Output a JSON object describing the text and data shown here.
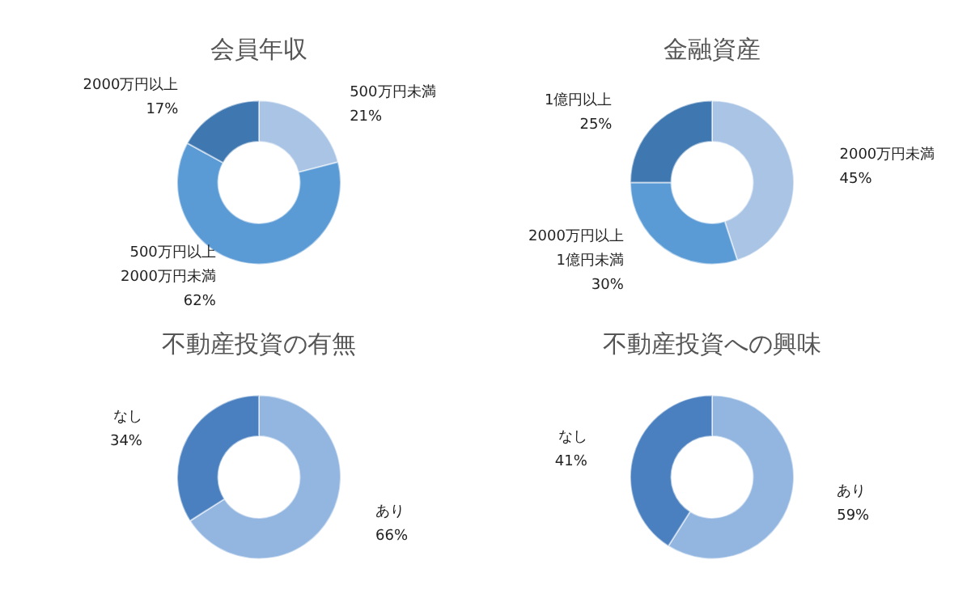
{
  "chart_data": [
    {
      "type": "donut",
      "title": "会員年収",
      "categories": [
        "500万円未満",
        "500万円以上\n2000万円未満",
        "2000万円以上"
      ],
      "values": [
        21,
        62,
        17
      ],
      "value_labels": [
        "21%",
        "62%",
        "17%"
      ],
      "colors": [
        "#a9c4e4",
        "#5b9bd5",
        "#3f77b0"
      ]
    },
    {
      "type": "donut",
      "title": "金融資産",
      "categories": [
        "2000万円未満",
        "2000万円以上\n1億円未満",
        "1億円以上"
      ],
      "values": [
        45,
        30,
        25
      ],
      "value_labels": [
        "45%",
        "30%",
        "25%"
      ],
      "colors": [
        "#a9c4e4",
        "#5b9bd5",
        "#3f77b0"
      ]
    },
    {
      "type": "donut",
      "title": "不動産投資の有無",
      "categories": [
        "あり",
        "なし"
      ],
      "values": [
        66,
        34
      ],
      "value_labels": [
        "66%",
        "34%"
      ],
      "colors": [
        "#93b6e0",
        "#4a80bf"
      ]
    },
    {
      "type": "donut",
      "title": "不動産投資への興味",
      "categories": [
        "あり",
        "なし"
      ],
      "values": [
        59,
        41
      ],
      "value_labels": [
        "59%",
        "41%"
      ],
      "colors": [
        "#93b6e0",
        "#4a80bf"
      ]
    }
  ]
}
